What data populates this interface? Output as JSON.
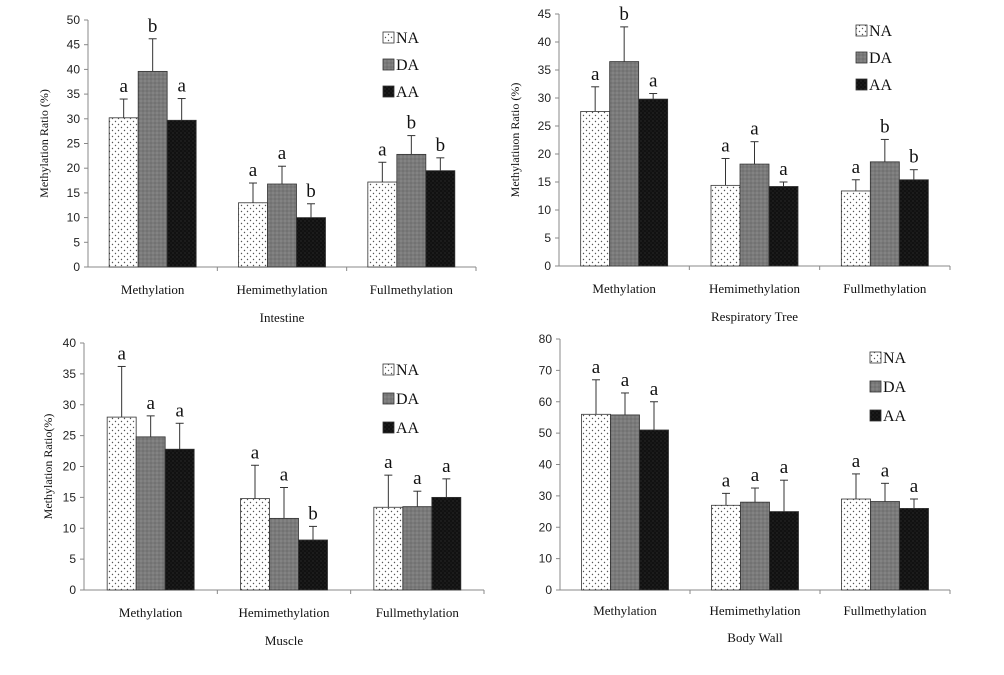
{
  "chart_data": [
    {
      "type": "bar",
      "xlabel": "Intestine",
      "ylabel": "Methylation Ratio (%)",
      "ylim": [
        0,
        50
      ],
      "yticks": [
        0,
        5,
        10,
        15,
        20,
        25,
        30,
        35,
        40,
        45,
        50
      ],
      "categories": [
        "Methylation",
        "Hemimethylation",
        "Fullmethylation"
      ],
      "legend": "top-right",
      "series": [
        {
          "name": "NA",
          "values": [
            30.2,
            13.0,
            17.2
          ],
          "errors": [
            3.8,
            4.0,
            4.0
          ],
          "labels": [
            "a",
            "a",
            "a"
          ]
        },
        {
          "name": "DA",
          "values": [
            39.6,
            16.8,
            22.8
          ],
          "errors": [
            6.6,
            3.6,
            3.8
          ],
          "labels": [
            "b",
            "a",
            "b"
          ]
        },
        {
          "name": "AA",
          "values": [
            29.7,
            10.0,
            19.5
          ],
          "errors": [
            4.4,
            2.8,
            2.6
          ],
          "labels": [
            "a",
            "b",
            "b"
          ]
        }
      ]
    },
    {
      "type": "bar",
      "xlabel": "Respiratory Tree",
      "ylabel": "Methylatiuon Ratio (%)",
      "ylim": [
        0,
        45
      ],
      "yticks": [
        0,
        5,
        10,
        15,
        20,
        25,
        30,
        35,
        40,
        45
      ],
      "categories": [
        "Methylation",
        "Hemimethylation",
        "Fullmethylation"
      ],
      "legend": "top-right",
      "series": [
        {
          "name": "NA",
          "values": [
            27.6,
            14.4,
            13.4
          ],
          "errors": [
            4.4,
            4.8,
            2.0
          ],
          "labels": [
            "a",
            "a",
            "a"
          ]
        },
        {
          "name": "DA",
          "values": [
            36.5,
            18.2,
            18.6
          ],
          "errors": [
            6.2,
            4.0,
            4.0
          ],
          "labels": [
            "b",
            "a",
            "b"
          ]
        },
        {
          "name": "AA",
          "values": [
            29.8,
            14.2,
            15.4
          ],
          "errors": [
            1.0,
            0.8,
            1.8
          ],
          "labels": [
            "a",
            "a",
            "b"
          ]
        }
      ]
    },
    {
      "type": "bar",
      "xlabel": "Muscle",
      "ylabel": "Methylation Ratio(%)",
      "ylim": [
        0,
        40
      ],
      "yticks": [
        0,
        5,
        10,
        15,
        20,
        25,
        30,
        35,
        40
      ],
      "categories": [
        "Methylation",
        "Hemimethylation",
        "Fullmethylation"
      ],
      "legend": "top-right",
      "series": [
        {
          "name": "NA",
          "values": [
            28.0,
            14.8,
            13.4
          ],
          "errors": [
            8.2,
            5.4,
            5.2
          ],
          "labels": [
            "a",
            "a",
            "a"
          ]
        },
        {
          "name": "DA",
          "values": [
            24.8,
            11.6,
            13.5
          ],
          "errors": [
            3.4,
            5.0,
            2.5
          ],
          "labels": [
            "a",
            "a",
            "a"
          ]
        },
        {
          "name": "AA",
          "values": [
            22.8,
            8.1,
            15.0
          ],
          "errors": [
            4.2,
            2.2,
            3.0
          ],
          "labels": [
            "a",
            "b",
            "a"
          ]
        }
      ]
    },
    {
      "type": "bar",
      "xlabel": "Body Wall",
      "ylabel": "",
      "ylim": [
        0,
        80
      ],
      "yticks": [
        0,
        10,
        20,
        30,
        40,
        50,
        60,
        70,
        80
      ],
      "categories": [
        "Methylation",
        "Hemimethylation",
        "Fullmethylation"
      ],
      "legend": "top-right",
      "series": [
        {
          "name": "NA",
          "values": [
            56.0,
            27.0,
            29.0
          ],
          "errors": [
            11.0,
            3.8,
            8.0
          ],
          "labels": [
            "a",
            "a",
            "a"
          ]
        },
        {
          "name": "DA",
          "values": [
            55.8,
            28.0,
            28.2
          ],
          "errors": [
            7.0,
            4.5,
            5.8
          ],
          "labels": [
            "a",
            "a",
            "a"
          ]
        },
        {
          "name": "AA",
          "values": [
            51.0,
            25.0,
            26.0
          ],
          "errors": [
            9.0,
            10.0,
            3.0
          ],
          "labels": [
            "a",
            "a",
            "a"
          ]
        }
      ]
    }
  ],
  "styles": {
    "fills": {
      "NA": "dots-light",
      "DA": "#808080",
      "AA": "#111111"
    },
    "axis_color": "#888888"
  }
}
